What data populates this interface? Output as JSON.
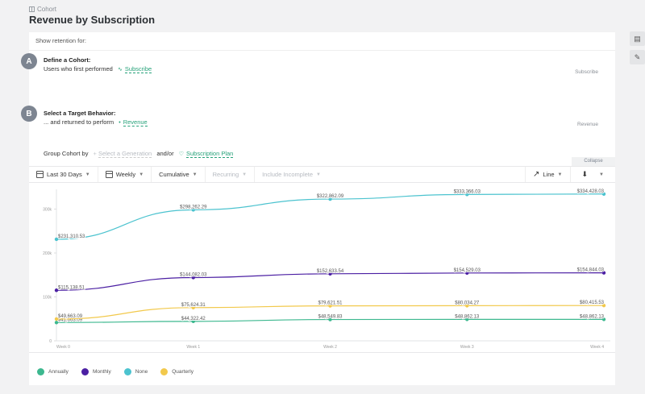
{
  "breadcrumb": "Cohort",
  "title": "Revenue by Subscription",
  "show_for": "Show retention for:",
  "stepA": {
    "badge": "A",
    "heading": "Define a Cohort:",
    "text": "Users who first performed",
    "event": "Subscribe",
    "right_label": "Subscribe"
  },
  "stepB": {
    "badge": "B",
    "heading": "Select a Target Behavior:",
    "text": "... and returned to perform",
    "event": "Revenue",
    "right_label": "Revenue"
  },
  "group": {
    "label": "Group Cohort by",
    "generation": "Select a Generation",
    "andor": "and/or",
    "plan": "Subscription Plan"
  },
  "collapse": "Collapse",
  "toolbar": {
    "range": "Last 30 Days",
    "interval": "Weekly",
    "mode": "Cumulative",
    "recurring": "Recurring",
    "incomplete": "Include Incomplete",
    "chart_type": "Line"
  },
  "chart_data": {
    "type": "line",
    "x": [
      "Week 0",
      "Week 1",
      "Week 2",
      "Week 3",
      "Week 4"
    ],
    "y_ticks": [
      "0",
      "100k",
      "200k",
      "300k"
    ],
    "ylim": [
      0,
      345000
    ],
    "series": [
      {
        "name": "Annually",
        "color": "#3db88f",
        "values": [
          41663.09,
          44322.42,
          48549.83,
          48862.13,
          48862.13
        ],
        "labels": [
          "$41,663.09",
          "$44,322.42",
          "$48,549.83",
          "$48,862.13",
          "$48,862.13"
        ]
      },
      {
        "name": "Monthly",
        "color": "#4b1fa3",
        "values": [
          115138.51,
          144082.03,
          152633.54,
          154529.03,
          154844.03
        ],
        "labels": [
          "$115,138.51",
          "$144,082.03",
          "$152,633.54",
          "$154,529.03",
          "$154,844.03"
        ]
      },
      {
        "name": "None",
        "color": "#4cc3cf",
        "values": [
          231310.53,
          298262.29,
          322862.09,
          333366.03,
          334428.03
        ],
        "labels": [
          "$231,310.53",
          "$298,262.29",
          "$322,862.09",
          "$333,366.03",
          "$334,428.03"
        ]
      },
      {
        "name": "Quarterly",
        "color": "#f2c94c",
        "values": [
          49663.09,
          75624.31,
          79621.51,
          80034.27,
          80415.53
        ],
        "labels": [
          "$49,663.09",
          "$75,624.31",
          "$79,621.51",
          "$80,034.27",
          "$80,415.53"
        ]
      }
    ]
  }
}
